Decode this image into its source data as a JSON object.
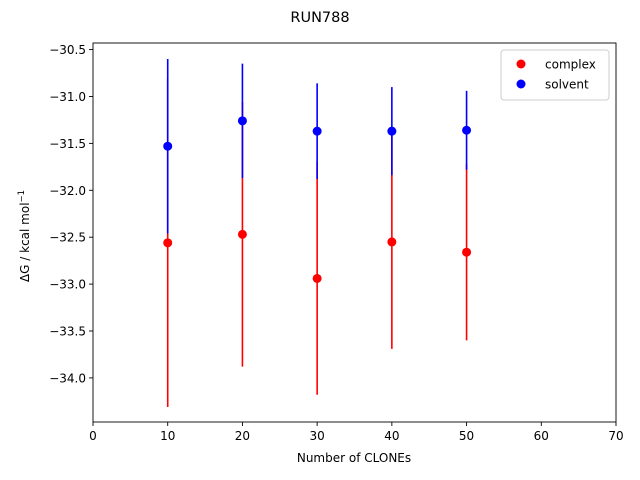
{
  "chart_data": {
    "type": "scatter",
    "title": "RUN788",
    "xlabel": "Number of CLONEs",
    "ylabel": "ΔG / kcal mol",
    "ylabel_sup": "−1",
    "xlim": [
      0,
      70
    ],
    "ylim": [
      -34.47,
      -30.43
    ],
    "x_ticks": [
      0,
      10,
      20,
      30,
      40,
      50,
      60,
      70
    ],
    "x_tick_labels": [
      "0",
      "10",
      "20",
      "30",
      "40",
      "50",
      "60",
      "70"
    ],
    "y_ticks": [
      -34.0,
      -33.5,
      -33.0,
      -32.5,
      -32.0,
      -31.5,
      -31.0,
      -30.5
    ],
    "y_tick_labels": [
      "−34.0",
      "−33.5",
      "−33.0",
      "−32.5",
      "−32.0",
      "−31.5",
      "−31.0",
      "−30.5"
    ],
    "grid": false,
    "legend_position": "top-right",
    "series": [
      {
        "name": "complex",
        "color": "#ff0000",
        "x": [
          10,
          20,
          30,
          40,
          50
        ],
        "y": [
          -32.56,
          -32.47,
          -32.94,
          -32.55,
          -32.66
        ],
        "yerr": [
          1.75,
          1.41,
          1.24,
          1.14,
          0.94
        ]
      },
      {
        "name": "solvent",
        "color": "#0000ff",
        "x": [
          10,
          20,
          30,
          40,
          50
        ],
        "y": [
          -31.53,
          -31.26,
          -31.37,
          -31.37,
          -31.36
        ],
        "yerr": [
          0.93,
          0.61,
          0.51,
          0.47,
          0.42
        ]
      }
    ]
  }
}
